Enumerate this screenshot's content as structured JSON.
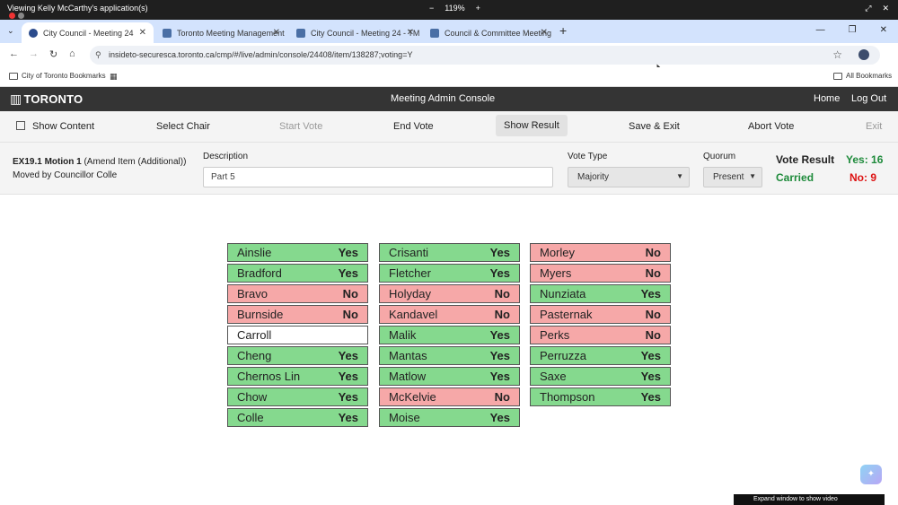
{
  "share_bar": {
    "title": "Viewing Kelly McCarthy's application(s)",
    "zoom_minus": "−",
    "zoom_level": "119%",
    "zoom_plus": "+"
  },
  "browser": {
    "tabs": [
      {
        "label": "City Council - Meeting 24",
        "icon": "globe-icon"
      },
      {
        "label": "Toronto Meeting Management",
        "icon": "tmms-icon"
      },
      {
        "label": "City Council - Meeting 24 - TM",
        "icon": "tmms-icon"
      },
      {
        "label": "Council & Committee Meeting",
        "icon": "tmms-icon"
      }
    ],
    "tab_close": "✕",
    "new_tab": "+",
    "url": "insideto-securesca.toronto.ca/cmp/#/live/admin/console/24408/item/138287;voting=Y",
    "bookmarks": [
      "City of Toronto Bookmarks"
    ],
    "all_bookmarks": "All Bookmarks"
  },
  "app": {
    "logo_text": "TORONTO",
    "console_title": "Meeting Admin Console",
    "home": "Home",
    "logout": "Log Out"
  },
  "toolbar": {
    "show_content": "Show Content",
    "select_chair": "Select Chair",
    "start_vote": "Start Vote",
    "end_vote": "End Vote",
    "show_result": "Show Result",
    "save_exit": "Save & Exit",
    "abort_vote": "Abort Vote",
    "exit": "Exit"
  },
  "motion": {
    "id": "EX19.1 Motion 1",
    "type": "(Amend Item (Additional))",
    "mover": "Moved by Councillor Colle",
    "description_label": "Description",
    "description_value": "Part 5",
    "vote_type_label": "Vote Type",
    "vote_type_value": "Majority",
    "quorum_label": "Quorum",
    "quorum_value": "Present",
    "vote_result_label": "Vote Result",
    "vote_status": "Carried",
    "yes_count": "Yes: 16",
    "no_count": "No: 9"
  },
  "votes": [
    [
      {
        "name": "Ainslie",
        "vote": "Yes"
      },
      {
        "name": "Bradford",
        "vote": "Yes"
      },
      {
        "name": "Bravo",
        "vote": "No"
      },
      {
        "name": "Burnside",
        "vote": "No"
      },
      {
        "name": "Carroll",
        "vote": ""
      },
      {
        "name": "Cheng",
        "vote": "Yes"
      },
      {
        "name": "Chernos Lin",
        "vote": "Yes"
      },
      {
        "name": "Chow",
        "vote": "Yes"
      },
      {
        "name": "Colle",
        "vote": "Yes"
      }
    ],
    [
      {
        "name": "Crisanti",
        "vote": "Yes"
      },
      {
        "name": "Fletcher",
        "vote": "Yes"
      },
      {
        "name": "Holyday",
        "vote": "No"
      },
      {
        "name": "Kandavel",
        "vote": "No"
      },
      {
        "name": "Malik",
        "vote": "Yes"
      },
      {
        "name": "Mantas",
        "vote": "Yes"
      },
      {
        "name": "Matlow",
        "vote": "Yes"
      },
      {
        "name": "McKelvie",
        "vote": "No"
      },
      {
        "name": "Moise",
        "vote": "Yes"
      }
    ],
    [
      {
        "name": "Morley",
        "vote": "No"
      },
      {
        "name": "Myers",
        "vote": "No"
      },
      {
        "name": "Nunziata",
        "vote": "Yes"
      },
      {
        "name": "Pasternak",
        "vote": "No"
      },
      {
        "name": "Perks",
        "vote": "No"
      },
      {
        "name": "Perruzza",
        "vote": "Yes"
      },
      {
        "name": "Saxe",
        "vote": "Yes"
      },
      {
        "name": "Thompson",
        "vote": "Yes"
      }
    ]
  ],
  "overlay": {
    "expand_text": "Expand window to show video"
  }
}
